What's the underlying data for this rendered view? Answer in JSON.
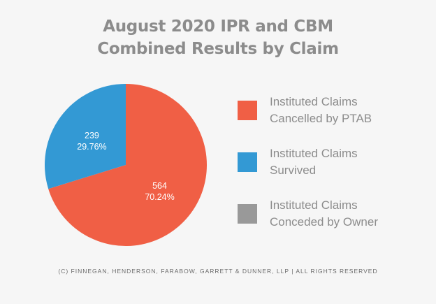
{
  "title": {
    "line1": "August 2020 IPR and CBM",
    "line2": "Combined Results by Claim"
  },
  "footer": "(C) FINNEGAN, HENDERSON, FARABOW, GARRETT & DUNNER, LLP | ALL RIGHTS RESERVED",
  "legend": [
    {
      "line1": "Instituted Claims",
      "line2": "Cancelled by PTAB",
      "color": "#f05f45"
    },
    {
      "line1": "Instituted Claims",
      "line2": "Survived",
      "color": "#3399d4"
    },
    {
      "line1": "Instituted Claims",
      "line2": "Conceded by Owner",
      "color": "#999999"
    }
  ],
  "chart_data": {
    "type": "pie",
    "title": "August 2020 IPR and CBM Combined Results by Claim",
    "slices": [
      {
        "label": "Instituted Claims Cancelled by PTAB",
        "value": 564,
        "percent": "70.24%",
        "color": "#f05f45"
      },
      {
        "label": "Instituted Claims Survived",
        "value": 239,
        "percent": "29.76%",
        "color": "#3399d4"
      },
      {
        "label": "Instituted Claims Conceded by Owner",
        "value": 0,
        "percent": "",
        "color": "#999999"
      }
    ],
    "legend_position": "right"
  }
}
